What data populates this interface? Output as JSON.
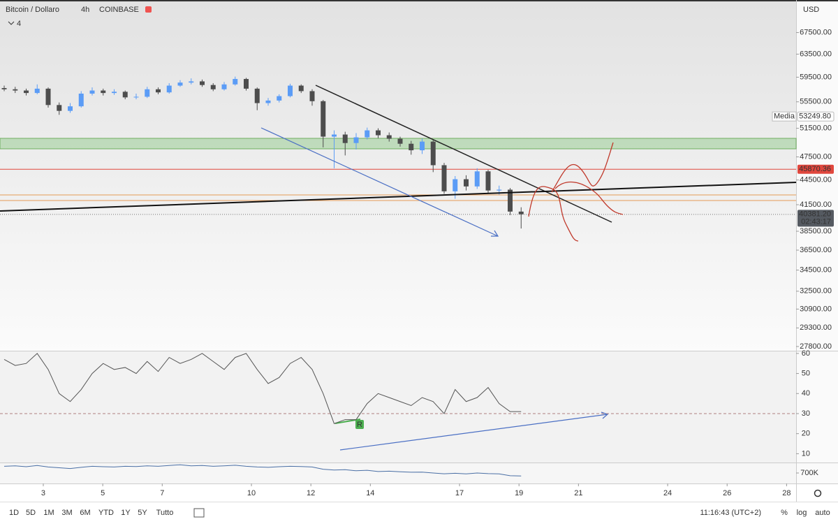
{
  "header": {
    "symbol": "Bitcoin / Dollaro",
    "interval": "4h",
    "exchange": "COINBASE",
    "indicator_count": "4",
    "currency": "USD"
  },
  "chart_data": {
    "type": "candlestick",
    "log_scale": true,
    "grid": false,
    "up_color": "#5b9cf6",
    "down_color": "#4d4d4d",
    "open": [
      57700,
      57500,
      57300,
      56900,
      57600,
      55000,
      54100,
      54800,
      56800,
      57300,
      56900,
      57100,
      56200,
      56300,
      57500,
      57000,
      58100,
      58600,
      58800,
      58200,
      57500,
      58300,
      59200,
      57600,
      55300,
      55700,
      56400,
      58100,
      57200,
      55600,
      50300,
      50600,
      49400,
      50200,
      51200,
      50500,
      50000,
      49300,
      48400,
      49600,
      46400,
      43100,
      44600,
      43700,
      45600,
      43200,
      43300,
      40700
    ],
    "high": [
      58100,
      57900,
      57600,
      58300,
      57800,
      55400,
      55300,
      57200,
      57800,
      57600,
      57500,
      57300,
      56800,
      57900,
      57800,
      58500,
      59000,
      59300,
      59100,
      58500,
      58700,
      59600,
      59400,
      57800,
      56100,
      56700,
      58400,
      58300,
      57500,
      55800,
      51200,
      51000,
      50800,
      51600,
      51500,
      50900,
      50300,
      49700,
      50000,
      49800,
      46700,
      45000,
      45100,
      46000,
      45800,
      43800,
      43500,
      41200
    ],
    "low": [
      57200,
      56900,
      56500,
      56700,
      54600,
      53500,
      53800,
      54600,
      56500,
      56500,
      56600,
      55900,
      55900,
      56100,
      56700,
      56800,
      57900,
      58300,
      57900,
      57200,
      57300,
      58100,
      57300,
      54200,
      54900,
      55400,
      56200,
      56900,
      54900,
      48800,
      46000,
      47700,
      48500,
      49900,
      50100,
      49600,
      48900,
      47800,
      47900,
      45500,
      42800,
      42200,
      43200,
      43400,
      42800,
      42700,
      40300,
      38800
    ],
    "close": [
      57500,
      57300,
      56900,
      57600,
      55000,
      54100,
      54800,
      56800,
      57300,
      56900,
      57100,
      56200,
      56300,
      57500,
      57000,
      58100,
      58600,
      58800,
      58200,
      57500,
      58300,
      59200,
      57600,
      55300,
      55700,
      56400,
      58100,
      57200,
      55600,
      50300,
      50600,
      49400,
      50200,
      51200,
      50500,
      50000,
      49300,
      48400,
      49600,
      46400,
      43100,
      44600,
      43700,
      45600,
      43200,
      43300,
      40700,
      40400
    ],
    "ylim": [
      27470,
      74000
    ],
    "yticks": [
      {
        "value": 67500,
        "label": "67500.00"
      },
      {
        "value": 63500,
        "label": "63500.00"
      },
      {
        "value": 59500,
        "label": "59500.00"
      },
      {
        "value": 55500,
        "label": "55500.00"
      },
      {
        "value": 51500,
        "label": "51500.00"
      },
      {
        "value": 47500,
        "label": "47500.00"
      },
      {
        "value": 44500,
        "label": "44500.00"
      },
      {
        "value": 41500,
        "label": "41500.00"
      },
      {
        "value": 38500,
        "label": "38500.00"
      },
      {
        "value": 36500,
        "label": "36500.00"
      },
      {
        "value": 34500,
        "label": "34500.00"
      },
      {
        "value": 32500,
        "label": "32500.00"
      },
      {
        "value": 30900,
        "label": "30900.00"
      },
      {
        "value": 29300,
        "label": "29300.00"
      },
      {
        "value": 27800,
        "label": "27800.00"
      }
    ],
    "xlim": [
      1.544,
      28.32
    ],
    "xticks": [
      3,
      5,
      7,
      10,
      12,
      14,
      17,
      19,
      21,
      24,
      26,
      28
    ],
    "price_lines": [
      {
        "name": "Media",
        "value": 53249.8,
        "value_label": "53249.80",
        "color": "#ffffff"
      },
      {
        "value": 45870.36,
        "value_label": "45870.36",
        "color": "#e0473d"
      },
      {
        "value": 40381.2,
        "value_label": "40381.20",
        "countdown": "02:43:17",
        "color": "#555a61"
      }
    ]
  },
  "rsi": {
    "values": [
      57,
      54,
      55,
      60,
      52,
      40,
      36,
      42,
      50,
      55,
      52,
      53,
      50,
      56,
      51,
      58,
      55,
      57,
      60,
      56,
      52,
      58,
      60,
      52,
      45,
      48,
      55,
      58,
      52,
      40,
      25,
      27,
      27,
      35,
      40,
      38,
      36,
      34,
      38,
      36,
      30,
      42,
      36,
      38,
      43,
      35,
      31,
      31
    ],
    "ylim": [
      5.6,
      61
    ],
    "yticks": [
      10,
      20,
      30,
      40,
      50,
      60
    ],
    "level": 30,
    "marker": "R",
    "color": "#555555"
  },
  "volume": {
    "values": [
      1150000,
      1180000,
      1120000,
      1200000,
      1100000,
      1050000,
      1000000,
      1080000,
      1150000,
      1120000,
      1100000,
      1150000,
      1130000,
      1180000,
      1150000,
      1200000,
      1250000,
      1180000,
      1200000,
      1150000,
      1180000,
      1220000,
      1150000,
      1100000,
      1080000,
      1120000,
      1150000,
      1130000,
      1100000,
      950000,
      900000,
      920000,
      850000,
      880000,
      800000,
      820000,
      780000,
      750000,
      760000,
      700000,
      650000,
      680000,
      640000,
      700000,
      660000,
      640000,
      520000,
      500000
    ],
    "ylim": [
      0,
      1400000
    ],
    "yticks": [
      {
        "value": 700000,
        "label": "700K"
      }
    ],
    "color": "#4a6fa5"
  },
  "toolbar": {
    "ranges": [
      "1D",
      "5D",
      "1M",
      "3M",
      "6M",
      "YTD",
      "1Y",
      "5Y",
      "Tutto"
    ],
    "clock": "11:16:43 (UTC+2)",
    "options": [
      "%",
      "log",
      "auto"
    ]
  }
}
